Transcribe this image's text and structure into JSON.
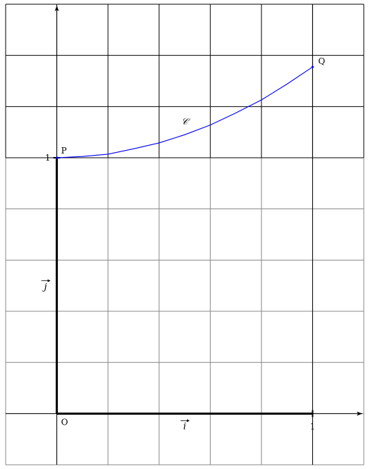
{
  "chart_data": {
    "type": "line",
    "xlim": [
      -0.2,
      1.2
    ],
    "ylim": [
      -0.2,
      1.6
    ],
    "grid": true,
    "grid_step": 0.2,
    "origin_label": "O",
    "x_tick_label": "1",
    "y_tick_label": "1",
    "x_tick_value": 1,
    "y_tick_value": 1,
    "i_vector_label": "i",
    "j_vector_label": "j",
    "curve_label": "𝒞",
    "curve_label_at": [
      0.5,
      1.13
    ],
    "series": [
      {
        "x": [
          0,
          0.1,
          0.2,
          0.3,
          0.4,
          0.5,
          0.6,
          0.7,
          0.8,
          0.9,
          1.0
        ],
        "y": [
          1,
          1.005,
          1.014,
          1.035,
          1.058,
          1.09,
          1.128,
          1.175,
          1.226,
          1.288,
          1.355
        ]
      }
    ],
    "points": [
      {
        "label": "P",
        "x": 0,
        "y": 1
      },
      {
        "label": "Q",
        "x": 1,
        "y": 1.355
      }
    ],
    "colors": {
      "curve": "#0000ff",
      "axes": "#000000",
      "grid_upper": "#000000",
      "grid_lower": "#888888"
    }
  }
}
